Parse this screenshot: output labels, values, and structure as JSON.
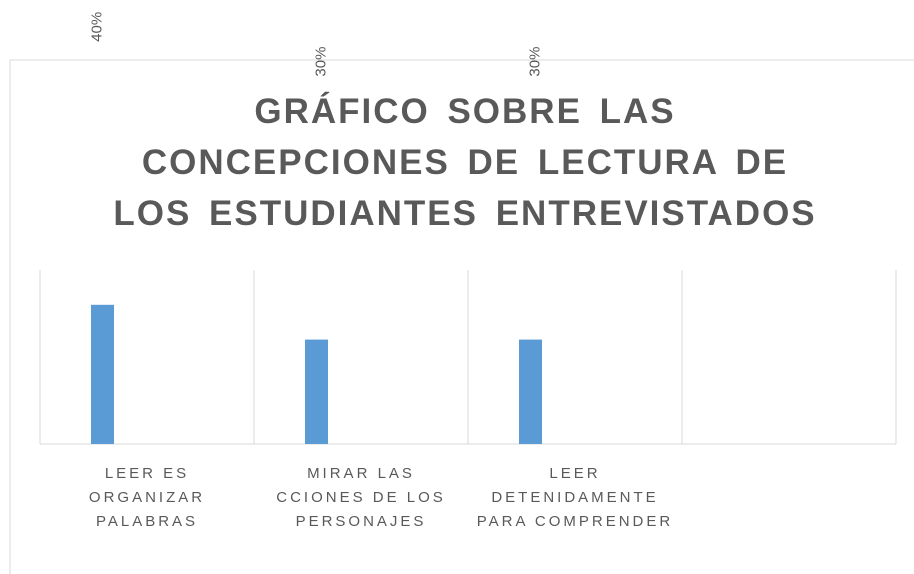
{
  "chart_data": {
    "type": "bar",
    "title": "GRÁFICO SOBRE LAS CONCEPCIONES DE LECTURA DE LOS ESTUDIANTES ENTREVISTADOS",
    "categories": [
      "LEER ES ORGANIZAR PALABRAS",
      "MIRAR LAS CCIONES DE LOS PERSONAJES",
      "LEER DETENIDAMENTE PARA COMPRENDER",
      null
    ],
    "values": [
      40,
      30,
      30,
      null
    ],
    "value_labels": [
      "40%",
      "30%",
      "30%",
      null
    ],
    "color": "#5b9bd5",
    "ylim": [
      0,
      50
    ],
    "grid": true
  }
}
